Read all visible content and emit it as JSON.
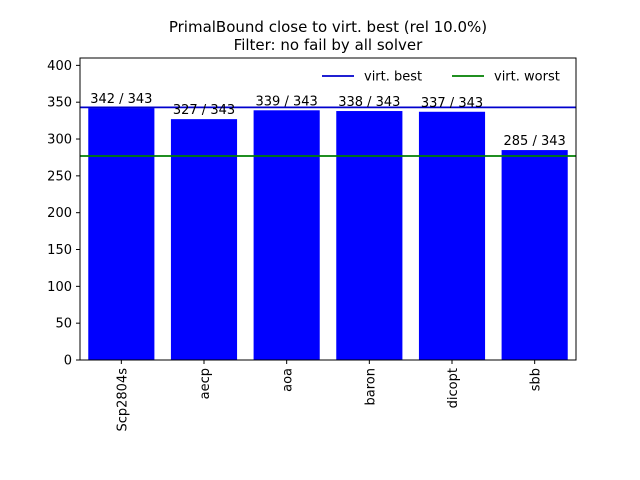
{
  "chart_data": {
    "type": "bar",
    "title_line1": "PrimalBound close to virt. best (rel 10.0%)",
    "title_line2": "Filter: no fail by all solver",
    "categories": [
      "Scp2804s",
      "aecp",
      "aoa",
      "baron",
      "dicopt",
      "sbb"
    ],
    "values": [
      342,
      327,
      339,
      338,
      337,
      285
    ],
    "bar_labels": [
      "342 / 343",
      "327 / 343",
      "339 / 343",
      "338 / 343",
      "337 / 343",
      "285 / 343"
    ],
    "ylim": [
      0,
      410
    ],
    "yticks": [
      0,
      50,
      100,
      150,
      200,
      250,
      300,
      350,
      400
    ],
    "reference_lines": [
      {
        "name": "virt. best",
        "value": 343,
        "color": "#0000cc"
      },
      {
        "name": "virt. worst",
        "value": 277,
        "color": "#007f00"
      }
    ],
    "bar_color": "#0000ff",
    "legend_position": "top-right",
    "grid": false
  }
}
